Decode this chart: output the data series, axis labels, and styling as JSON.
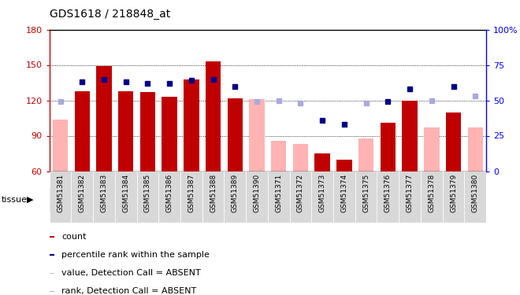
{
  "title": "GDS1618 / 218848_at",
  "samples": [
    "GSM51381",
    "GSM51382",
    "GSM51383",
    "GSM51384",
    "GSM51385",
    "GSM51386",
    "GSM51387",
    "GSM51388",
    "GSM51389",
    "GSM51390",
    "GSM51371",
    "GSM51372",
    "GSM51373",
    "GSM51374",
    "GSM51375",
    "GSM51376",
    "GSM51377",
    "GSM51378",
    "GSM51379",
    "GSM51380"
  ],
  "bar_values": [
    null,
    128,
    149,
    128,
    127,
    123,
    138,
    153,
    122,
    null,
    null,
    null,
    75,
    70,
    null,
    101,
    120,
    null,
    110,
    null
  ],
  "bar_absent": [
    104,
    null,
    null,
    null,
    null,
    null,
    null,
    null,
    null,
    121,
    86,
    83,
    null,
    null,
    88,
    null,
    null,
    97,
    null,
    97
  ],
  "rank_present": [
    null,
    63,
    65,
    63,
    62,
    62,
    64,
    65,
    60,
    null,
    null,
    null,
    36,
    33,
    null,
    49,
    58,
    null,
    60,
    null
  ],
  "rank_absent": [
    49,
    null,
    null,
    null,
    null,
    null,
    null,
    null,
    null,
    49,
    50,
    48,
    null,
    null,
    48,
    null,
    null,
    50,
    null,
    53
  ],
  "ylim_left": [
    60,
    180
  ],
  "ylim_right": [
    0,
    100
  ],
  "yticks_left": [
    60,
    90,
    120,
    150,
    180
  ],
  "yticks_right": [
    0,
    25,
    50,
    75,
    100
  ],
  "color_bar_present": "#c00000",
  "color_bar_absent": "#ffb3b3",
  "color_rank_present": "#00008b",
  "color_rank_absent": "#aaaadd",
  "tonsil_color": "#ccffcc",
  "lymph_color": "#55ee55",
  "tonsil_count": 10,
  "lymph_count": 10,
  "bg_color": "#e8e8e8"
}
